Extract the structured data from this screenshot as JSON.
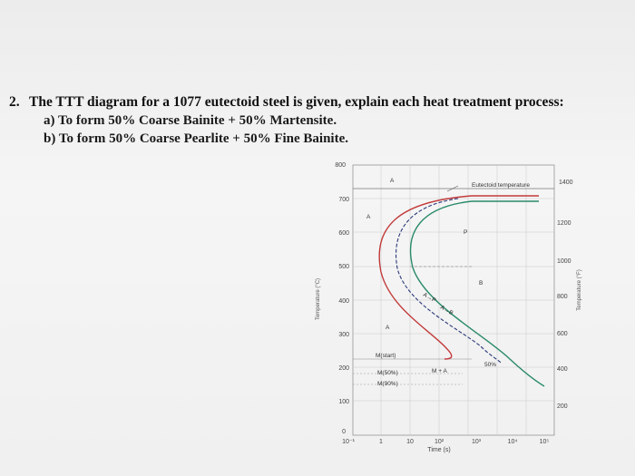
{
  "question": {
    "number": "2.",
    "text": "The TTT diagram for a 1077 eutectoid steel is given, explain each heat treatment process:",
    "part_a": "a)  To form 50% Coarse Bainite + 50% Martensite.",
    "part_b": "b)  To form 50% Coarse Pearlite + 50% Fine Bainite."
  },
  "diagram": {
    "y_axis_c_label": "Temperature (°C)",
    "y_axis_f_label": "Temperature (°F)",
    "x_axis_label": "Time (s)",
    "c_ticks": [
      "800",
      "700",
      "600",
      "500",
      "400",
      "300",
      "200",
      "100",
      "0"
    ],
    "f_ticks": [
      "1400",
      "1200",
      "1000",
      "800",
      "600",
      "400",
      "200"
    ],
    "x_ticks": [
      "10⁻¹",
      "1",
      "10",
      "10²",
      "10³",
      "10⁴",
      "10⁵"
    ],
    "eutectoid_label": "Eutectoid temperature",
    "region_labels": {
      "a_top": "A",
      "a_mid": "A",
      "a_low": "A",
      "p": "P",
      "b": "B",
      "a_to_p": "A→P",
      "a_to_b": "A→B",
      "pct50": "50%",
      "m_a": "M + A",
      "m_start": "M(start)",
      "m_50": "M(50%)",
      "m_90": "M(90%)"
    },
    "colors": {
      "start_curve": "#c23a3a",
      "end_curve": "#2a8a6a",
      "dashed": "#2b3a7a"
    }
  }
}
